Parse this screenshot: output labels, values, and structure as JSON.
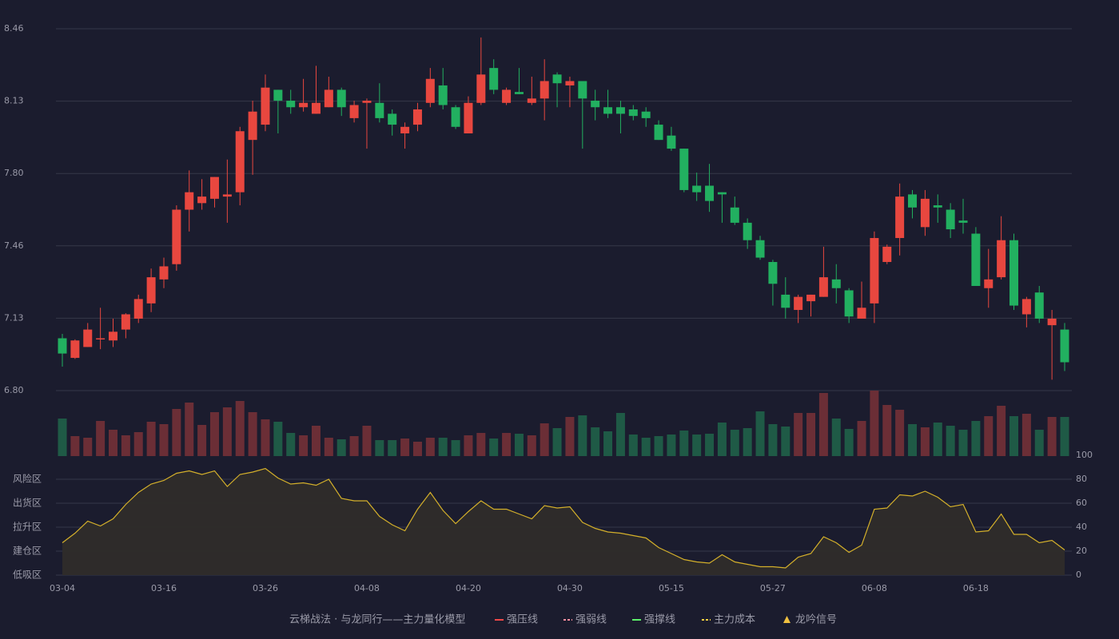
{
  "chart_data": [
    {
      "type": "candlestick",
      "categories": [
        "03-04",
        null,
        null,
        null,
        null,
        null,
        null,
        null,
        "03-16",
        null,
        null,
        null,
        null,
        null,
        null,
        null,
        "03-26",
        null,
        null,
        null,
        null,
        null,
        null,
        null,
        "04-08",
        null,
        null,
        null,
        null,
        null,
        null,
        null,
        "04-20",
        null,
        null,
        null,
        null,
        null,
        null,
        null,
        "04-30",
        null,
        null,
        null,
        null,
        null,
        null,
        null,
        "05-15",
        null,
        null,
        null,
        null,
        null,
        null,
        null,
        "05-27",
        null,
        null,
        null,
        null,
        null,
        null,
        null,
        "06-08",
        null,
        null,
        null,
        null,
        null,
        null,
        null,
        "06-18",
        null,
        null,
        null,
        null,
        null,
        null,
        null
      ],
      "open": [
        7.04,
        6.95,
        7.0,
        7.04,
        7.03,
        7.08,
        7.13,
        7.2,
        7.31,
        7.38,
        7.63,
        7.66,
        7.68,
        7.69,
        7.71,
        7.95,
        8.02,
        8.18,
        8.13,
        8.1,
        8.07,
        8.1,
        8.18,
        8.05,
        8.12,
        8.12,
        8.07,
        7.98,
        8.02,
        8.12,
        8.2,
        8.1,
        7.98,
        8.12,
        8.28,
        8.12,
        8.17,
        8.12,
        8.14,
        8.25,
        8.2,
        8.22,
        8.13,
        8.1,
        8.1,
        8.09,
        8.08,
        8.02,
        7.97,
        7.91,
        7.74,
        7.74,
        7.71,
        7.64,
        7.57,
        7.49,
        7.39,
        7.24,
        7.17,
        7.21,
        7.23,
        7.31,
        7.26,
        7.13,
        7.2,
        7.39,
        7.5,
        7.7,
        7.55,
        7.65,
        7.63,
        7.58,
        7.52,
        7.27,
        7.32,
        7.49,
        7.15,
        7.25,
        7.1,
        7.08
      ],
      "high": [
        7.06,
        7.035,
        7.11,
        7.18,
        7.13,
        7.155,
        7.24,
        7.36,
        7.41,
        7.65,
        7.81,
        7.77,
        7.78,
        7.86,
        8.01,
        8.13,
        8.25,
        8.18,
        8.18,
        8.23,
        8.29,
        8.24,
        8.19,
        8.13,
        8.14,
        8.21,
        8.09,
        8.03,
        8.12,
        8.28,
        8.28,
        8.11,
        8.15,
        8.42,
        8.32,
        8.19,
        8.28,
        8.24,
        8.32,
        8.26,
        8.24,
        8.22,
        8.18,
        8.18,
        8.13,
        8.11,
        8.1,
        8.04,
        8.01,
        7.91,
        7.8,
        7.84,
        7.71,
        7.69,
        7.59,
        7.51,
        7.4,
        7.32,
        7.24,
        7.24,
        7.46,
        7.38,
        7.27,
        7.3,
        7.53,
        7.47,
        7.75,
        7.72,
        7.72,
        7.7,
        7.66,
        7.68,
        7.55,
        7.45,
        7.6,
        7.52,
        7.23,
        7.28,
        7.17,
        7.11
      ],
      "low": [
        6.91,
        6.945,
        7.0,
        6.99,
        7.0,
        7.04,
        7.11,
        7.16,
        7.27,
        7.35,
        7.53,
        7.63,
        7.64,
        7.57,
        7.65,
        7.79,
        7.99,
        7.98,
        8.07,
        8.08,
        8.07,
        8.1,
        8.06,
        8.03,
        7.91,
        8.03,
        7.97,
        7.91,
        7.99,
        8.1,
        8.09,
        8.0,
        7.98,
        8.11,
        8.16,
        8.11,
        8.16,
        8.11,
        8.04,
        8.1,
        8.1,
        7.91,
        8.04,
        8.05,
        7.98,
        8.04,
        8.01,
        7.95,
        7.9,
        7.71,
        7.67,
        7.62,
        7.57,
        7.56,
        7.45,
        7.4,
        7.19,
        7.13,
        7.11,
        7.14,
        7.23,
        7.2,
        7.11,
        7.13,
        7.11,
        7.38,
        7.42,
        7.59,
        7.51,
        7.57,
        7.5,
        7.52,
        7.28,
        7.18,
        7.31,
        7.17,
        7.09,
        7.11,
        6.85,
        6.89
      ],
      "close": [
        6.97,
        7.03,
        7.08,
        7.04,
        7.07,
        7.15,
        7.22,
        7.32,
        7.37,
        7.63,
        7.71,
        7.69,
        7.78,
        7.7,
        7.99,
        8.08,
        8.19,
        8.13,
        8.1,
        8.12,
        8.12,
        8.18,
        8.1,
        8.11,
        8.13,
        8.05,
        8.02,
        8.01,
        8.09,
        8.23,
        8.11,
        8.01,
        8.12,
        8.25,
        8.18,
        8.18,
        8.16,
        8.14,
        8.22,
        8.21,
        8.22,
        8.14,
        8.1,
        8.07,
        8.07,
        8.06,
        8.05,
        7.95,
        7.91,
        7.72,
        7.71,
        7.67,
        7.7,
        7.57,
        7.49,
        7.41,
        7.29,
        7.18,
        7.23,
        7.24,
        7.32,
        7.27,
        7.14,
        7.18,
        7.5,
        7.46,
        7.69,
        7.64,
        7.68,
        7.64,
        7.54,
        7.57,
        7.28,
        7.31,
        7.49,
        7.19,
        7.22,
        7.13,
        7.13,
        6.93
      ],
      "ylim": [
        6.8,
        8.46
      ],
      "yticks": [
        {
          "value": 8.46,
          "label": "8.46"
        },
        {
          "value": 8.128,
          "label": "8.13"
        },
        {
          "value": 7.796,
          "label": "7.80"
        },
        {
          "value": 7.464,
          "label": "7.46"
        },
        {
          "value": 7.132,
          "label": "7.13"
        },
        {
          "value": 6.8,
          "label": "6.80"
        }
      ],
      "colors": {
        "up": "#e8473f",
        "down": "#22b060"
      }
    },
    {
      "type": "bar",
      "values": [
        47,
        25,
        23,
        44,
        33,
        26,
        30,
        43,
        40,
        59,
        67,
        39,
        55,
        61,
        69,
        55,
        46,
        43,
        29,
        26,
        38,
        23,
        21,
        25,
        38,
        20,
        20,
        22,
        18,
        23,
        23,
        20,
        26,
        29,
        22,
        29,
        28,
        26,
        41,
        35,
        49,
        51,
        36,
        31,
        54,
        27,
        23,
        25,
        27,
        32,
        27,
        28,
        42,
        33,
        35,
        56,
        40,
        37,
        54,
        54,
        79,
        47,
        34,
        44,
        82,
        64,
        58,
        40,
        36,
        42,
        38,
        33,
        44,
        50,
        63,
        50,
        53,
        33,
        49,
        49
      ],
      "colors": {
        "up": "#6b2e36",
        "down": "#1f5a46"
      }
    },
    {
      "type": "area",
      "values": [
        27,
        35,
        45,
        41,
        47,
        59,
        69,
        76,
        79,
        85,
        87,
        84,
        87,
        74,
        84,
        86,
        89,
        81,
        76,
        77,
        75,
        80,
        64,
        62,
        62,
        49,
        42,
        37,
        55,
        69,
        54,
        43,
        53,
        62,
        55,
        55,
        51,
        47,
        58,
        56,
        57,
        44,
        39,
        36,
        35,
        33,
        31,
        23,
        18,
        13,
        11,
        10,
        17,
        11,
        9,
        7,
        7,
        6,
        15,
        18,
        32,
        27,
        19,
        25,
        55,
        56,
        67,
        66,
        70,
        65,
        57,
        59,
        36,
        37,
        51,
        34,
        34,
        27,
        29,
        21
      ],
      "color": "#d4b02a",
      "ylim": [
        0,
        100
      ],
      "yticks": [
        0,
        20,
        40,
        60,
        80,
        100
      ],
      "ytick_colors": [
        "#f04848",
        "#f0a030",
        "#4a90e0",
        "#e040e0",
        "#f0a030",
        "#3fd060"
      ],
      "zones": [
        {
          "value": 80,
          "label": "风险区",
          "color": "#f0a030"
        },
        {
          "value": 60,
          "label": "出货区",
          "color": "#e040e0"
        },
        {
          "value": 40,
          "label": "拉升区",
          "color": "#4a90e0"
        },
        {
          "value": 20,
          "label": "建仓区",
          "color": "#f06060"
        },
        {
          "value": 0,
          "label": "低吸区",
          "color": "#f04848"
        }
      ]
    },
    {
      "type": "legend",
      "title": "云梯战法 · 与龙同行——主力量化模型",
      "title_color": "#e8c060",
      "items": [
        {
          "name": "强压线",
          "color": "#f04848",
          "style": "solid"
        },
        {
          "name": "强弱线",
          "color": "#ff8fa0",
          "style": "dashed"
        },
        {
          "name": "强撑线",
          "color": "#5cf06a",
          "style": "solid"
        },
        {
          "name": "主力成本",
          "color": "#f0d040",
          "style": "dashed"
        },
        {
          "name": "龙吟信号",
          "color": "#f0c040",
          "style": "triangle"
        }
      ]
    }
  ]
}
